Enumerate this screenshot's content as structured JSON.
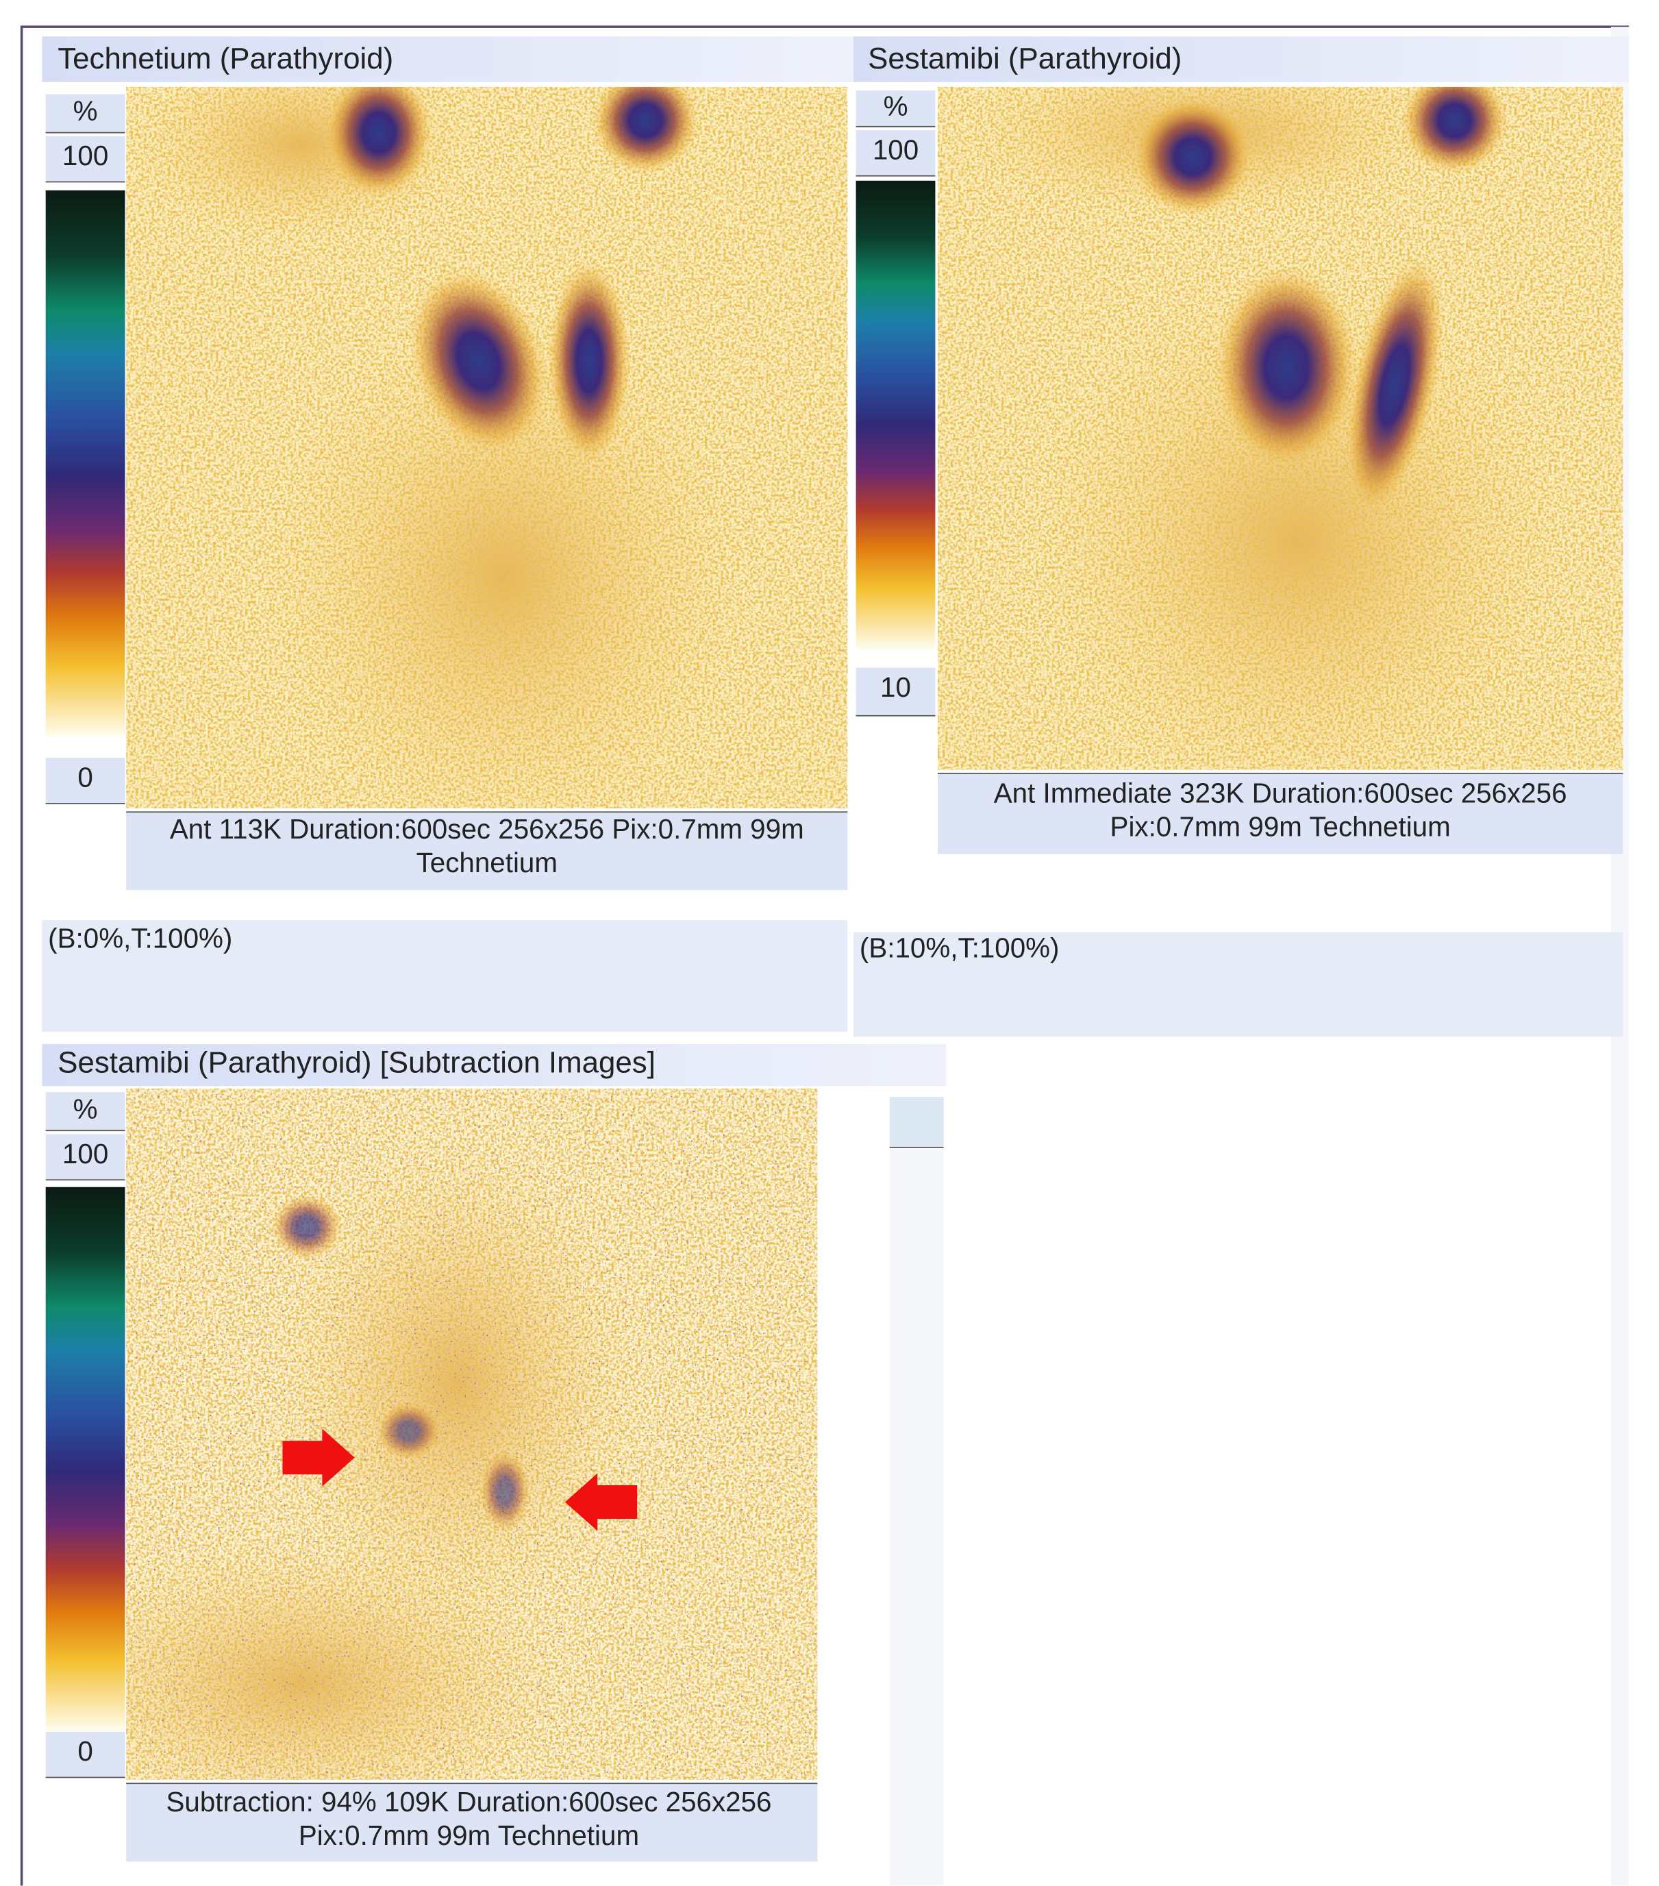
{
  "panels": [
    {
      "title": "Technetium (Parathyroid)",
      "scale": {
        "unit": "%",
        "top": "100",
        "bottom": "0"
      },
      "caption": [
        "Ant 113K Duration:600sec 256x256 Pix:0.7mm 99m",
        "Technetium"
      ],
      "window": "(B:0%,T:100%)"
    },
    {
      "title": "Sestamibi (Parathyroid)",
      "scale": {
        "unit": "%",
        "top": "100",
        "bottom": "10"
      },
      "caption": [
        "Ant Immediate 323K Duration:600sec 256x256",
        "Pix:0.7mm 99m Technetium"
      ],
      "window": "(B:10%,T:100%)"
    },
    {
      "title": "Sestamibi (Parathyroid) [Subtraction Images]",
      "scale": {
        "unit": "%",
        "top": "100",
        "bottom": "0"
      },
      "caption": [
        "Subtraction: 94% 109K Duration:600sec 256x256",
        "Pix:0.7mm 99m Technetium"
      ]
    }
  ]
}
